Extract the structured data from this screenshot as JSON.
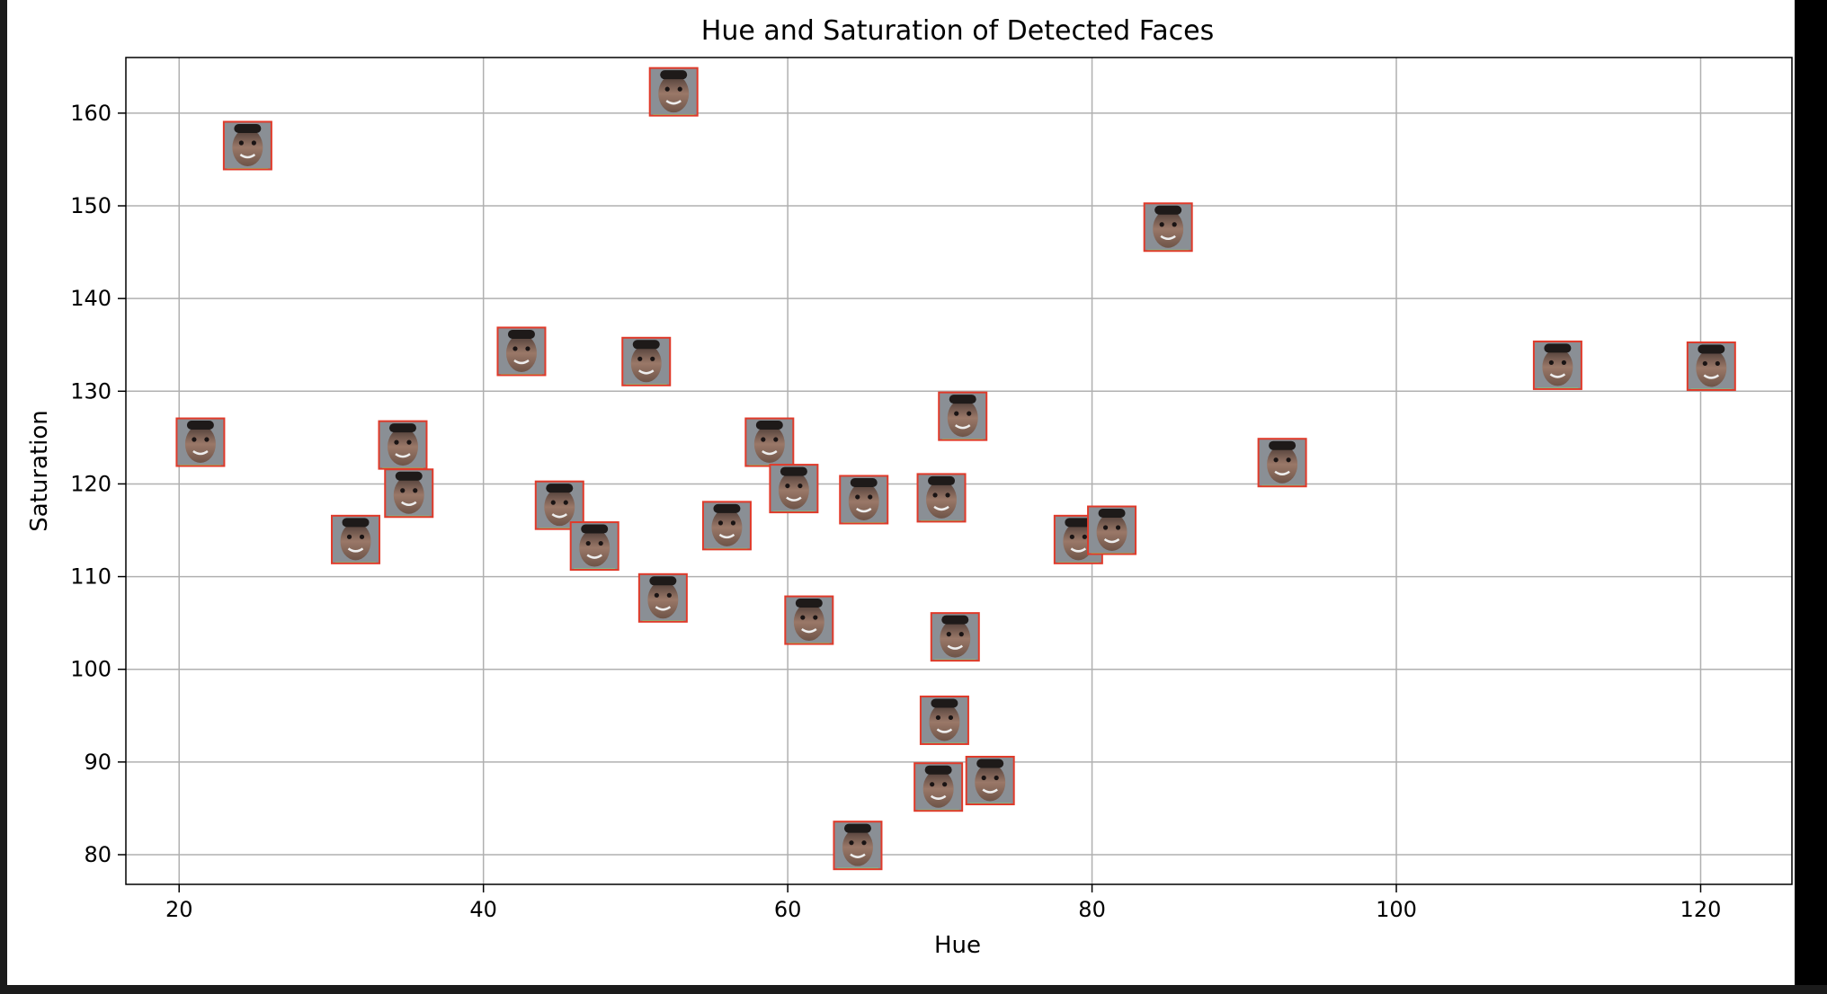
{
  "chart_data": {
    "type": "scatter",
    "title": "Hue and Saturation of Detected Faces",
    "xlabel": "Hue",
    "ylabel": "Saturation",
    "xlim": [
      16.5,
      126
    ],
    "ylim": [
      76.8,
      166
    ],
    "xticks": [
      20,
      40,
      60,
      80,
      100,
      120
    ],
    "yticks": [
      80,
      90,
      100,
      110,
      120,
      130,
      140,
      150,
      160
    ],
    "grid": true,
    "marker": "face-thumbnail",
    "points": [
      {
        "x": 24.5,
        "y": 156.5
      },
      {
        "x": 52.5,
        "y": 162.3
      },
      {
        "x": 85.0,
        "y": 147.7
      },
      {
        "x": 21.4,
        "y": 124.5
      },
      {
        "x": 34.7,
        "y": 124.2
      },
      {
        "x": 35.1,
        "y": 119.0
      },
      {
        "x": 31.6,
        "y": 114.0
      },
      {
        "x": 42.5,
        "y": 134.3
      },
      {
        "x": 50.7,
        "y": 133.2
      },
      {
        "x": 45.0,
        "y": 117.7
      },
      {
        "x": 47.3,
        "y": 113.3
      },
      {
        "x": 51.8,
        "y": 107.7
      },
      {
        "x": 56.0,
        "y": 115.5
      },
      {
        "x": 58.8,
        "y": 124.5
      },
      {
        "x": 60.4,
        "y": 119.5
      },
      {
        "x": 61.4,
        "y": 105.3
      },
      {
        "x": 65.0,
        "y": 118.3
      },
      {
        "x": 70.1,
        "y": 118.5
      },
      {
        "x": 71.5,
        "y": 127.3
      },
      {
        "x": 71.0,
        "y": 103.5
      },
      {
        "x": 70.3,
        "y": 94.5
      },
      {
        "x": 69.9,
        "y": 87.3
      },
      {
        "x": 73.3,
        "y": 88.0
      },
      {
        "x": 64.6,
        "y": 81.0
      },
      {
        "x": 79.1,
        "y": 114.0
      },
      {
        "x": 81.3,
        "y": 115.0
      },
      {
        "x": 92.5,
        "y": 122.3
      },
      {
        "x": 110.6,
        "y": 132.8
      },
      {
        "x": 120.7,
        "y": 132.7
      }
    ]
  },
  "colors": {
    "marker_border": "#e03a2a",
    "marker_edge_alt": "#7fdc7a",
    "grid": "#b0b0b0",
    "axes": "#000000"
  }
}
